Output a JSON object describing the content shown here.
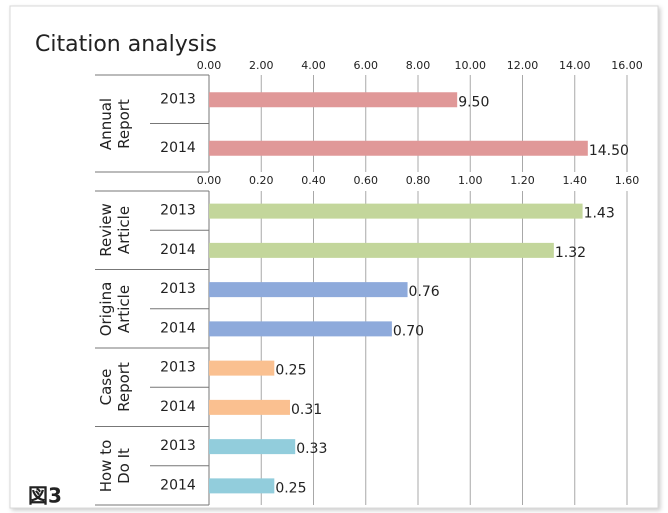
{
  "title": "Citation analysis",
  "figure_label": "図3",
  "chart_data": [
    {
      "type": "bar",
      "orientation": "horizontal",
      "grid": true,
      "xlim": [
        0,
        16
      ],
      "xticks": [
        {
          "value": 0,
          "label": "0.00"
        },
        {
          "value": 2,
          "label": "2.00"
        },
        {
          "value": 4,
          "label": "4.00"
        },
        {
          "value": 6,
          "label": "6.00"
        },
        {
          "value": 8,
          "label": "8.00"
        },
        {
          "value": 10,
          "label": "10.00"
        },
        {
          "value": 12,
          "label": "12.00"
        },
        {
          "value": 14,
          "label": "14.00"
        },
        {
          "value": 16,
          "label": "16.00"
        }
      ],
      "series": [
        {
          "name": "Annual Report",
          "color": "#e09898",
          "categories": [
            "2013",
            "2014"
          ],
          "values": [
            9.5,
            14.5
          ],
          "value_labels": [
            "9.50",
            "14.50"
          ]
        }
      ]
    },
    {
      "type": "bar",
      "orientation": "horizontal",
      "grid": true,
      "xlim": [
        0,
        1.6
      ],
      "xticks": [
        {
          "value": 0,
          "label": "0.00"
        },
        {
          "value": 0.2,
          "label": "0.20"
        },
        {
          "value": 0.4,
          "label": "0.40"
        },
        {
          "value": 0.6,
          "label": "0.60"
        },
        {
          "value": 0.8,
          "label": "0.80"
        },
        {
          "value": 1,
          "label": "1.00"
        },
        {
          "value": 1.2,
          "label": "1.20"
        },
        {
          "value": 1.4,
          "label": "1.40"
        },
        {
          "value": 1.6,
          "label": "1.60"
        }
      ],
      "series": [
        {
          "name": "Review Article",
          "color": "#c3d69b",
          "categories": [
            "2013",
            "2014"
          ],
          "values": [
            1.43,
            1.32
          ]
        },
        {
          "name": "Origina Article",
          "color": "#8eaadb",
          "categories": [
            "2013",
            "2014"
          ],
          "values": [
            0.76,
            0.7
          ],
          "value_labels": [
            "0.76",
            "0.70"
          ]
        },
        {
          "name": "Case Report",
          "color": "#fac090",
          "categories": [
            "2013",
            "2014"
          ],
          "values": [
            0.25,
            0.31
          ]
        },
        {
          "name": "How to Do It",
          "color": "#92cddc",
          "categories": [
            "2013",
            "2014"
          ],
          "values": [
            0.33,
            0.25
          ]
        }
      ]
    }
  ]
}
